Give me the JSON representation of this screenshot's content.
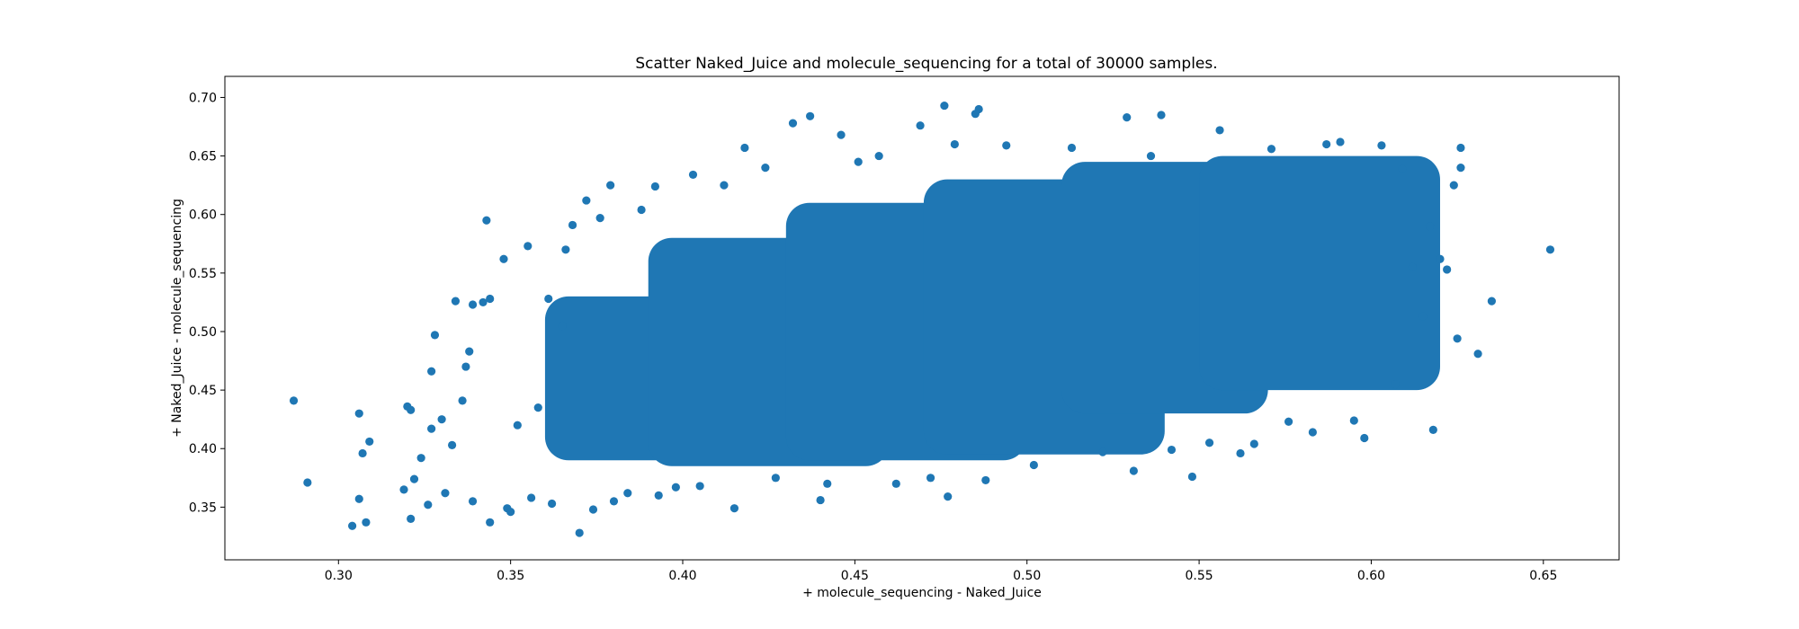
{
  "chart_data": {
    "type": "scatter",
    "title": "Scatter Naked_Juice and molecule_sequencing for a total of 30000 samples.",
    "xlabel": "+ molecule_sequencing - Naked_Juice",
    "ylabel": "+ Naked_Juice - molecule_sequencing",
    "xlim": [
      0.267,
      0.672
    ],
    "ylim": [
      0.305,
      0.718
    ],
    "x_ticks": [
      0.3,
      0.35,
      0.4,
      0.45,
      0.5,
      0.55,
      0.6,
      0.65
    ],
    "x_tick_labels": [
      "0.30",
      "0.35",
      "0.40",
      "0.45",
      "0.50",
      "0.55",
      "0.60",
      "0.65"
    ],
    "y_ticks": [
      0.35,
      0.4,
      0.45,
      0.5,
      0.55,
      0.6,
      0.65,
      0.7
    ],
    "y_tick_labels": [
      "0.35",
      "0.40",
      "0.45",
      "0.50",
      "0.55",
      "0.60",
      "0.65",
      "0.70"
    ],
    "grid": false,
    "legend": "none",
    "sample_count": 30000,
    "color": "#1f77b4",
    "cluster_bands": [
      {
        "x_range": [
          0.36,
          0.42
        ],
        "y_range": [
          0.39,
          0.53
        ]
      },
      {
        "x_range": [
          0.39,
          0.46
        ],
        "y_range": [
          0.385,
          0.58
        ]
      },
      {
        "x_range": [
          0.43,
          0.5
        ],
        "y_range": [
          0.39,
          0.61
        ]
      },
      {
        "x_range": [
          0.47,
          0.54
        ],
        "y_range": [
          0.395,
          0.63
        ]
      },
      {
        "x_range": [
          0.51,
          0.57
        ],
        "y_range": [
          0.43,
          0.645
        ]
      },
      {
        "x_range": [
          0.55,
          0.62
        ],
        "y_range": [
          0.45,
          0.65
        ]
      }
    ],
    "points": [
      {
        "x": 0.287,
        "y": 0.441
      },
      {
        "x": 0.291,
        "y": 0.371
      },
      {
        "x": 0.304,
        "y": 0.334
      },
      {
        "x": 0.306,
        "y": 0.43
      },
      {
        "x": 0.306,
        "y": 0.357
      },
      {
        "x": 0.307,
        "y": 0.396
      },
      {
        "x": 0.308,
        "y": 0.337
      },
      {
        "x": 0.309,
        "y": 0.406
      },
      {
        "x": 0.319,
        "y": 0.365
      },
      {
        "x": 0.32,
        "y": 0.436
      },
      {
        "x": 0.321,
        "y": 0.433
      },
      {
        "x": 0.322,
        "y": 0.374
      },
      {
        "x": 0.321,
        "y": 0.34
      },
      {
        "x": 0.324,
        "y": 0.392
      },
      {
        "x": 0.326,
        "y": 0.352
      },
      {
        "x": 0.327,
        "y": 0.417
      },
      {
        "x": 0.327,
        "y": 0.466
      },
      {
        "x": 0.328,
        "y": 0.497
      },
      {
        "x": 0.33,
        "y": 0.425
      },
      {
        "x": 0.331,
        "y": 0.362
      },
      {
        "x": 0.333,
        "y": 0.403
      },
      {
        "x": 0.334,
        "y": 0.526
      },
      {
        "x": 0.336,
        "y": 0.441
      },
      {
        "x": 0.337,
        "y": 0.47
      },
      {
        "x": 0.338,
        "y": 0.483
      },
      {
        "x": 0.339,
        "y": 0.355
      },
      {
        "x": 0.339,
        "y": 0.523
      },
      {
        "x": 0.342,
        "y": 0.525
      },
      {
        "x": 0.343,
        "y": 0.595
      },
      {
        "x": 0.344,
        "y": 0.337
      },
      {
        "x": 0.344,
        "y": 0.528
      },
      {
        "x": 0.348,
        "y": 0.562
      },
      {
        "x": 0.349,
        "y": 0.349
      },
      {
        "x": 0.35,
        "y": 0.346
      },
      {
        "x": 0.352,
        "y": 0.42
      },
      {
        "x": 0.355,
        "y": 0.573
      },
      {
        "x": 0.356,
        "y": 0.358
      },
      {
        "x": 0.358,
        "y": 0.435
      },
      {
        "x": 0.361,
        "y": 0.528
      },
      {
        "x": 0.362,
        "y": 0.353
      },
      {
        "x": 0.365,
        "y": 0.505
      },
      {
        "x": 0.366,
        "y": 0.57
      },
      {
        "x": 0.368,
        "y": 0.591
      },
      {
        "x": 0.37,
        "y": 0.328
      },
      {
        "x": 0.372,
        "y": 0.612
      },
      {
        "x": 0.374,
        "y": 0.348
      },
      {
        "x": 0.376,
        "y": 0.597
      },
      {
        "x": 0.379,
        "y": 0.625
      },
      {
        "x": 0.38,
        "y": 0.355
      },
      {
        "x": 0.384,
        "y": 0.362
      },
      {
        "x": 0.388,
        "y": 0.604
      },
      {
        "x": 0.392,
        "y": 0.624
      },
      {
        "x": 0.393,
        "y": 0.36
      },
      {
        "x": 0.398,
        "y": 0.367
      },
      {
        "x": 0.403,
        "y": 0.634
      },
      {
        "x": 0.405,
        "y": 0.368
      },
      {
        "x": 0.412,
        "y": 0.625
      },
      {
        "x": 0.415,
        "y": 0.349
      },
      {
        "x": 0.418,
        "y": 0.657
      },
      {
        "x": 0.424,
        "y": 0.64
      },
      {
        "x": 0.427,
        "y": 0.375
      },
      {
        "x": 0.432,
        "y": 0.678
      },
      {
        "x": 0.437,
        "y": 0.684
      },
      {
        "x": 0.44,
        "y": 0.356
      },
      {
        "x": 0.442,
        "y": 0.37
      },
      {
        "x": 0.446,
        "y": 0.668
      },
      {
        "x": 0.451,
        "y": 0.645
      },
      {
        "x": 0.457,
        "y": 0.65
      },
      {
        "x": 0.462,
        "y": 0.37
      },
      {
        "x": 0.469,
        "y": 0.676
      },
      {
        "x": 0.472,
        "y": 0.375
      },
      {
        "x": 0.476,
        "y": 0.693
      },
      {
        "x": 0.477,
        "y": 0.359
      },
      {
        "x": 0.479,
        "y": 0.66
      },
      {
        "x": 0.486,
        "y": 0.69
      },
      {
        "x": 0.485,
        "y": 0.686
      },
      {
        "x": 0.488,
        "y": 0.373
      },
      {
        "x": 0.494,
        "y": 0.659
      },
      {
        "x": 0.502,
        "y": 0.386
      },
      {
        "x": 0.513,
        "y": 0.657
      },
      {
        "x": 0.522,
        "y": 0.397
      },
      {
        "x": 0.529,
        "y": 0.683
      },
      {
        "x": 0.531,
        "y": 0.381
      },
      {
        "x": 0.536,
        "y": 0.65
      },
      {
        "x": 0.539,
        "y": 0.685
      },
      {
        "x": 0.542,
        "y": 0.399
      },
      {
        "x": 0.548,
        "y": 0.376
      },
      {
        "x": 0.553,
        "y": 0.405
      },
      {
        "x": 0.556,
        "y": 0.672
      },
      {
        "x": 0.562,
        "y": 0.396
      },
      {
        "x": 0.566,
        "y": 0.404
      },
      {
        "x": 0.571,
        "y": 0.656
      },
      {
        "x": 0.576,
        "y": 0.423
      },
      {
        "x": 0.583,
        "y": 0.414
      },
      {
        "x": 0.587,
        "y": 0.66
      },
      {
        "x": 0.591,
        "y": 0.662
      },
      {
        "x": 0.595,
        "y": 0.424
      },
      {
        "x": 0.598,
        "y": 0.409
      },
      {
        "x": 0.603,
        "y": 0.659
      },
      {
        "x": 0.607,
        "y": 0.455
      },
      {
        "x": 0.609,
        "y": 0.639
      },
      {
        "x": 0.612,
        "y": 0.555
      },
      {
        "x": 0.615,
        "y": 0.513
      },
      {
        "x": 0.617,
        "y": 0.59
      },
      {
        "x": 0.618,
        "y": 0.416
      },
      {
        "x": 0.62,
        "y": 0.562
      },
      {
        "x": 0.622,
        "y": 0.553
      },
      {
        "x": 0.624,
        "y": 0.625
      },
      {
        "x": 0.625,
        "y": 0.494
      },
      {
        "x": 0.626,
        "y": 0.64
      },
      {
        "x": 0.626,
        "y": 0.657
      },
      {
        "x": 0.631,
        "y": 0.481
      },
      {
        "x": 0.635,
        "y": 0.526
      },
      {
        "x": 0.652,
        "y": 0.57
      }
    ]
  }
}
